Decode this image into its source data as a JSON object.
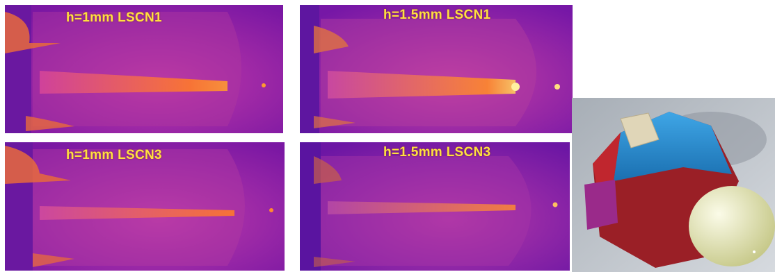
{
  "panels": [
    {
      "id": "p1",
      "label": "h=1mm LSCN1"
    },
    {
      "id": "p2",
      "label": "h=1.5mm LSCN1"
    },
    {
      "id": "p3",
      "label": "h=1mm LSCN3"
    },
    {
      "id": "p4",
      "label": "h=1.5mm LSCN3"
    }
  ],
  "colors": {
    "background_magenta": "#8a1aa6",
    "label_yellow": "#ffe040",
    "streak_orange": "#ff7a1a"
  },
  "render": {
    "icon": "capsule-render-icon"
  }
}
